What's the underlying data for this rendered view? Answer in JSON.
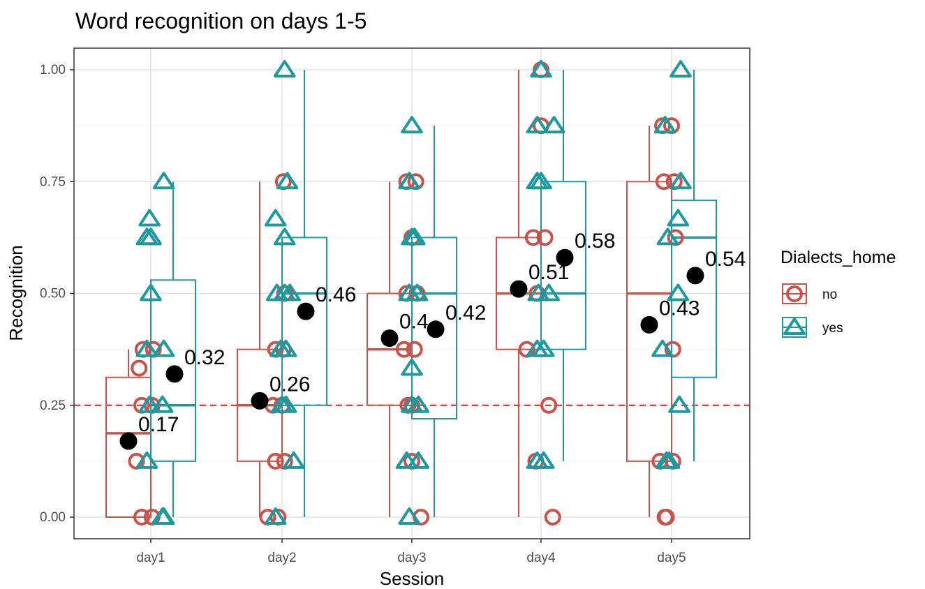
{
  "chart_data": {
    "type": "box",
    "title": "Word recognition on days 1-5",
    "xlabel": "Session",
    "ylabel": "Recognition",
    "categories": [
      "day1",
      "day2",
      "day3",
      "day4",
      "day5"
    ],
    "ylim": [
      -0.04,
      1.04
    ],
    "yticks": [
      0,
      0.25,
      0.5,
      0.75,
      1
    ],
    "ytick_labels": [
      "0.00",
      "0.25",
      "0.50",
      "0.75",
      "1.00"
    ],
    "grid": true,
    "reference_line": {
      "y": 0.25,
      "style": "dashed",
      "color": "#e41a1c"
    },
    "legend": {
      "title": "Dialects_home",
      "position": "right"
    },
    "series": [
      {
        "name": "no",
        "color": "#c9534b",
        "marker": "circle",
        "boxes": [
          {
            "q1": 0.0,
            "median": 0.1875,
            "q3": 0.3125,
            "whisker_low": 0.0,
            "whisker_high": 0.375
          },
          {
            "q1": 0.125,
            "median": 0.25,
            "q3": 0.375,
            "whisker_low": 0.0,
            "whisker_high": 0.75
          },
          {
            "q1": 0.25,
            "median": 0.375,
            "q3": 0.5,
            "whisker_low": 0.0,
            "whisker_high": 0.75
          },
          {
            "q1": 0.375,
            "median": 0.5,
            "q3": 0.625,
            "whisker_low": 0.0,
            "whisker_high": 1.0
          },
          {
            "q1": 0.125,
            "median": 0.5,
            "q3": 0.75,
            "whisker_low": 0.0,
            "whisker_high": 0.875
          }
        ],
        "points": [
          [
            [
              -0.06,
              0.375
            ],
            [
              0.02,
              0.375
            ],
            [
              -0.09,
              0.333
            ],
            [
              -0.07,
              0.25
            ],
            [
              0.01,
              0.25
            ],
            [
              -0.11,
              0.125
            ],
            [
              -0.07,
              0.0
            ],
            [
              0.01,
              0.0
            ]
          ],
          [
            [
              0.01,
              0.75
            ],
            [
              0.02,
              0.5
            ],
            [
              -0.05,
              0.375
            ],
            [
              0.01,
              0.375
            ],
            [
              -0.07,
              0.25
            ],
            [
              0.0,
              0.25
            ],
            [
              -0.05,
              0.125
            ],
            [
              0.02,
              0.125
            ],
            [
              -0.11,
              0.0
            ],
            [
              -0.03,
              0.0
            ]
          ],
          [
            [
              -0.04,
              0.75
            ],
            [
              0.03,
              0.75
            ],
            [
              0.0,
              0.625
            ],
            [
              -0.04,
              0.5
            ],
            [
              0.04,
              0.5
            ],
            [
              -0.06,
              0.375
            ],
            [
              0.02,
              0.375
            ],
            [
              -0.03,
              0.25
            ],
            [
              0.0,
              0.25
            ],
            [
              0.0,
              0.125
            ],
            [
              0.07,
              0.0
            ]
          ],
          [
            [
              0.0,
              1.0
            ],
            [
              0.0,
              0.875
            ],
            [
              -0.06,
              0.625
            ],
            [
              0.03,
              0.625
            ],
            [
              -0.03,
              0.5
            ],
            [
              -0.11,
              0.375
            ],
            [
              0.06,
              0.25
            ],
            [
              -0.04,
              0.125
            ],
            [
              0.09,
              0.0
            ]
          ],
          [
            [
              -0.07,
              0.875
            ],
            [
              0.0,
              0.875
            ],
            [
              -0.06,
              0.75
            ],
            [
              0.02,
              0.75
            ],
            [
              0.03,
              0.625
            ],
            [
              0.01,
              0.375
            ],
            [
              -0.09,
              0.125
            ],
            [
              0.01,
              0.125
            ],
            [
              -0.05,
              0.0
            ],
            [
              -0.04,
              0.0
            ]
          ]
        ],
        "means": [
          0.17,
          0.26,
          0.4,
          0.51,
          0.43
        ],
        "mean_labels": [
          "0.17",
          "0.26",
          "0.4",
          "0.51",
          "0.43"
        ]
      },
      {
        "name": "yes",
        "color": "#1b9aa0",
        "marker": "triangle",
        "boxes": [
          {
            "q1": 0.125,
            "median": 0.25,
            "q3": 0.53,
            "whisker_low": 0.0,
            "whisker_high": 0.75
          },
          {
            "q1": 0.25,
            "median": 0.5,
            "q3": 0.625,
            "whisker_low": 0.0,
            "whisker_high": 1.0
          },
          {
            "q1": 0.22,
            "median": 0.5,
            "q3": 0.625,
            "whisker_low": 0.0,
            "whisker_high": 0.875
          },
          {
            "q1": 0.375,
            "median": 0.5,
            "q3": 0.75,
            "whisker_low": 0.125,
            "whisker_high": 1.0
          },
          {
            "q1": 0.3125,
            "median": 0.625,
            "q3": 0.708,
            "whisker_low": 0.125,
            "whisker_high": 1.0
          }
        ],
        "points": [
          [
            [
              0.1,
              0.75
            ],
            [
              -0.01,
              0.667
            ],
            [
              0.0,
              0.625
            ],
            [
              -0.03,
              0.625
            ],
            [
              0.0,
              0.5
            ],
            [
              -0.03,
              0.375
            ],
            [
              0.1,
              0.375
            ],
            [
              -0.01,
              0.25
            ],
            [
              0.09,
              0.25
            ],
            [
              -0.03,
              0.125
            ],
            [
              0.09,
              0.0
            ],
            [
              0.1,
              0.0
            ]
          ],
          [
            [
              0.02,
              1.0
            ],
            [
              0.04,
              0.75
            ],
            [
              -0.05,
              0.667
            ],
            [
              0.02,
              0.625
            ],
            [
              -0.04,
              0.5
            ],
            [
              0.02,
              0.5
            ],
            [
              0.06,
              0.5
            ],
            [
              -0.01,
              0.375
            ],
            [
              0.03,
              0.375
            ],
            [
              0.0,
              0.25
            ],
            [
              0.03,
              0.25
            ],
            [
              0.09,
              0.125
            ],
            [
              -0.05,
              0.0
            ]
          ],
          [
            [
              0.0,
              0.875
            ],
            [
              -0.02,
              0.75
            ],
            [
              0.0,
              0.625
            ],
            [
              0.02,
              0.625
            ],
            [
              -0.02,
              0.5
            ],
            [
              0.04,
              0.5
            ],
            [
              0.0,
              0.333
            ],
            [
              0.0,
              0.25
            ],
            [
              0.05,
              0.25
            ],
            [
              -0.04,
              0.125
            ],
            [
              0.05,
              0.125
            ],
            [
              -0.02,
              0.0
            ]
          ],
          [
            [
              0.0,
              1.0
            ],
            [
              -0.03,
              0.875
            ],
            [
              0.1,
              0.875
            ],
            [
              -0.03,
              0.75
            ],
            [
              0.0,
              0.75
            ],
            [
              -0.02,
              0.5
            ],
            [
              0.06,
              0.5
            ],
            [
              -0.03,
              0.375
            ],
            [
              0.02,
              0.375
            ],
            [
              -0.03,
              0.125
            ],
            [
              0.02,
              0.125
            ]
          ],
          [
            [
              0.07,
              1.0
            ],
            [
              -0.05,
              0.875
            ],
            [
              0.07,
              0.75
            ],
            [
              -0.03,
              0.625
            ],
            [
              0.05,
              0.667
            ],
            [
              0.05,
              0.5
            ],
            [
              -0.07,
              0.375
            ],
            [
              0.06,
              0.25
            ],
            [
              -0.04,
              0.125
            ],
            [
              -0.02,
              0.125
            ]
          ]
        ],
        "means": [
          0.32,
          0.46,
          0.42,
          0.58,
          0.54
        ],
        "mean_labels": [
          "0.32",
          "0.46",
          "0.42",
          "0.58",
          "0.54"
        ]
      }
    ]
  }
}
